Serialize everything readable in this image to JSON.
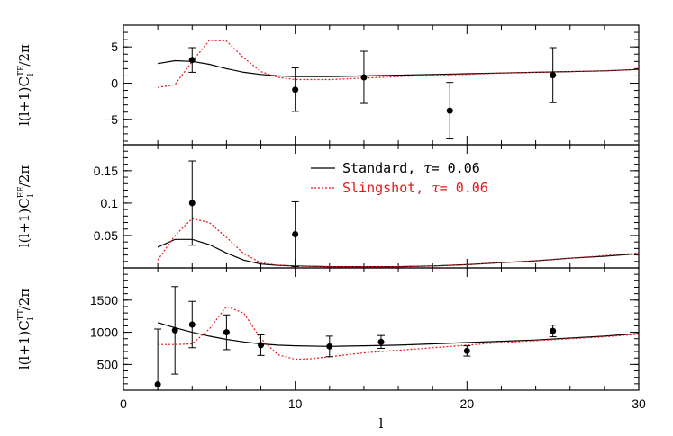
{
  "chart_data": [
    {
      "type": "line",
      "panel": "TE",
      "ylabel": "l(l+1)C_l^TE/2π",
      "ylabel_parts": [
        "l(l+1)C",
        "TE",
        "l",
        "/2π"
      ],
      "xlim": [
        0,
        30
      ],
      "ylim": [
        -8.5,
        8
      ],
      "yticks": [
        -5,
        0,
        5
      ],
      "yticklabels": [
        "−5",
        "0",
        "5"
      ],
      "series": [
        {
          "name": "Standard",
          "color": "#000000",
          "style": "solid",
          "x": [
            2,
            3,
            4,
            5,
            6,
            7,
            8,
            9,
            10,
            12,
            14,
            16,
            18,
            20,
            22,
            24,
            26,
            28,
            30
          ],
          "y": [
            2.7,
            3.1,
            3.0,
            2.6,
            2.0,
            1.5,
            1.2,
            1.0,
            0.9,
            0.9,
            1.0,
            1.1,
            1.2,
            1.3,
            1.4,
            1.5,
            1.6,
            1.7,
            1.9
          ]
        },
        {
          "name": "Slingshot",
          "color": "#e8151b",
          "style": "dotted",
          "x": [
            2,
            3,
            4,
            5,
            6,
            7,
            8,
            9,
            10,
            11,
            12,
            14,
            16,
            18,
            20,
            22,
            24,
            26,
            28,
            30
          ],
          "y": [
            -0.6,
            -0.2,
            3.0,
            5.9,
            5.8,
            3.5,
            1.6,
            0.8,
            0.5,
            0.5,
            0.5,
            0.7,
            0.9,
            1.1,
            1.2,
            1.4,
            1.5,
            1.6,
            1.7,
            1.9
          ]
        }
      ],
      "points": {
        "x": [
          4,
          10,
          14,
          19,
          25
        ],
        "y": [
          3.2,
          -0.9,
          0.8,
          -3.8,
          1.1
        ],
        "err": [
          1.7,
          3.0,
          3.6,
          3.9,
          3.8
        ]
      }
    },
    {
      "type": "line",
      "panel": "EE",
      "ylabel": "l(l+1)C_l^EE/2π",
      "ylabel_parts": [
        "l(l+1)C",
        "EE",
        "l",
        "/2π"
      ],
      "xlim": [
        0,
        30
      ],
      "ylim": [
        0,
        0.19
      ],
      "yticks": [
        0.05,
        0.1,
        0.15
      ],
      "yticklabels": [
        "0.05",
        "0.1",
        "0.15"
      ],
      "series": [
        {
          "name": "Standard",
          "color": "#000000",
          "style": "solid",
          "x": [
            2,
            3,
            4,
            5,
            6,
            7,
            8,
            9,
            10,
            12,
            14,
            16,
            18,
            20,
            22,
            24,
            26,
            28,
            30
          ],
          "y": [
            0.032,
            0.044,
            0.044,
            0.036,
            0.023,
            0.012,
            0.006,
            0.004,
            0.003,
            0.002,
            0.002,
            0.002,
            0.003,
            0.005,
            0.008,
            0.011,
            0.015,
            0.018,
            0.022
          ]
        },
        {
          "name": "Slingshot",
          "color": "#e8151b",
          "style": "dotted",
          "x": [
            2,
            3,
            4,
            5,
            6,
            7,
            8,
            9,
            10,
            12,
            14,
            16,
            18,
            20,
            22,
            24,
            26,
            28,
            30
          ],
          "y": [
            0.012,
            0.05,
            0.076,
            0.07,
            0.047,
            0.022,
            0.008,
            0.004,
            0.003,
            0.002,
            0.002,
            0.002,
            0.003,
            0.005,
            0.008,
            0.011,
            0.015,
            0.019,
            0.023
          ]
        }
      ],
      "points": {
        "x": [
          4,
          10
        ],
        "y": [
          0.1,
          0.052
        ],
        "err": [
          0.065,
          0.05
        ]
      },
      "legend": {
        "placement": "top-right",
        "entries": [
          {
            "prefix": "Standard, ",
            "symbol": "τ",
            "suffix": "= 0.06",
            "color": "#000000",
            "style": "solid"
          },
          {
            "prefix": "Slingshot, ",
            "symbol": "τ",
            "suffix": "= 0.06",
            "color": "#e8151b",
            "style": "dotted"
          }
        ]
      }
    },
    {
      "type": "line",
      "panel": "TT",
      "ylabel": "l(l+1)C_l^TT/2π",
      "ylabel_parts": [
        "l(l+1)C",
        "TT",
        "l",
        "/2π"
      ],
      "xlabel": "l",
      "xlim": [
        0,
        30
      ],
      "ylim": [
        100,
        2000
      ],
      "xticks": [
        0,
        10,
        20,
        30
      ],
      "xticklabels": [
        "0",
        "10",
        "20",
        "30"
      ],
      "yticks": [
        500,
        1000,
        1500
      ],
      "yticklabels": [
        "500",
        "1000",
        "1500"
      ],
      "series": [
        {
          "name": "Standard",
          "color": "#000000",
          "style": "solid",
          "x": [
            2,
            3,
            4,
            5,
            6,
            7,
            8,
            9,
            10,
            12,
            14,
            16,
            18,
            20,
            22,
            24,
            26,
            28,
            30
          ],
          "y": [
            1150,
            1070,
            1000,
            940,
            890,
            850,
            820,
            800,
            790,
            780,
            790,
            800,
            820,
            840,
            860,
            880,
            910,
            940,
            980
          ]
        },
        {
          "name": "Slingshot",
          "color": "#e8151b",
          "style": "dotted",
          "x": [
            2,
            3,
            4,
            5,
            6,
            7,
            8,
            9,
            10,
            11,
            12,
            14,
            16,
            18,
            20,
            22,
            24,
            26,
            28,
            30
          ],
          "y": [
            810,
            810,
            820,
            1050,
            1400,
            1300,
            900,
            650,
            580,
            590,
            620,
            680,
            720,
            760,
            800,
            840,
            870,
            900,
            930,
            970
          ]
        }
      ],
      "points": {
        "x": [
          2,
          3,
          4,
          6,
          8,
          12,
          15,
          20,
          25
        ],
        "y": [
          190,
          1030,
          1120,
          1000,
          800,
          780,
          850,
          710,
          1020
        ],
        "err": [
          860,
          680,
          360,
          270,
          160,
          160,
          100,
          80,
          90
        ]
      }
    }
  ]
}
